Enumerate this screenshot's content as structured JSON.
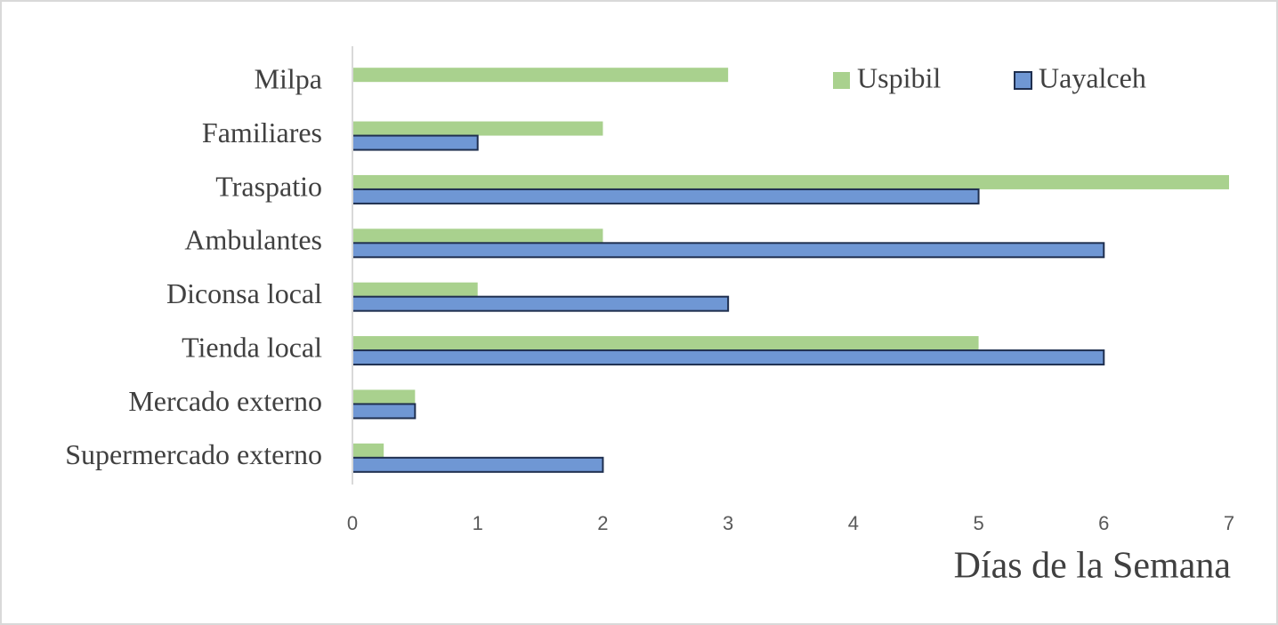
{
  "chart_data": {
    "type": "hbar",
    "x_label": "Días de la Semana",
    "categories": [
      "Milpa",
      "Familiares",
      "Traspatio",
      "Ambulantes",
      "Diconsa local",
      "Tienda local",
      "Mercado externo",
      "Supermercado externo"
    ],
    "series": [
      {
        "name": "Uspibil",
        "color": "#a9d18e",
        "values": [
          3,
          2,
          7,
          2,
          1,
          5,
          0.5,
          0.25
        ]
      },
      {
        "name": "Uayalceh",
        "color": "#6f97d4",
        "values": [
          0,
          1,
          5,
          6,
          3,
          6,
          0.5,
          2
        ]
      }
    ],
    "xlim": [
      0,
      7
    ],
    "xticks": [
      0,
      1,
      2,
      3,
      4,
      5,
      6,
      7
    ],
    "legend": "top-right",
    "grid": false
  }
}
